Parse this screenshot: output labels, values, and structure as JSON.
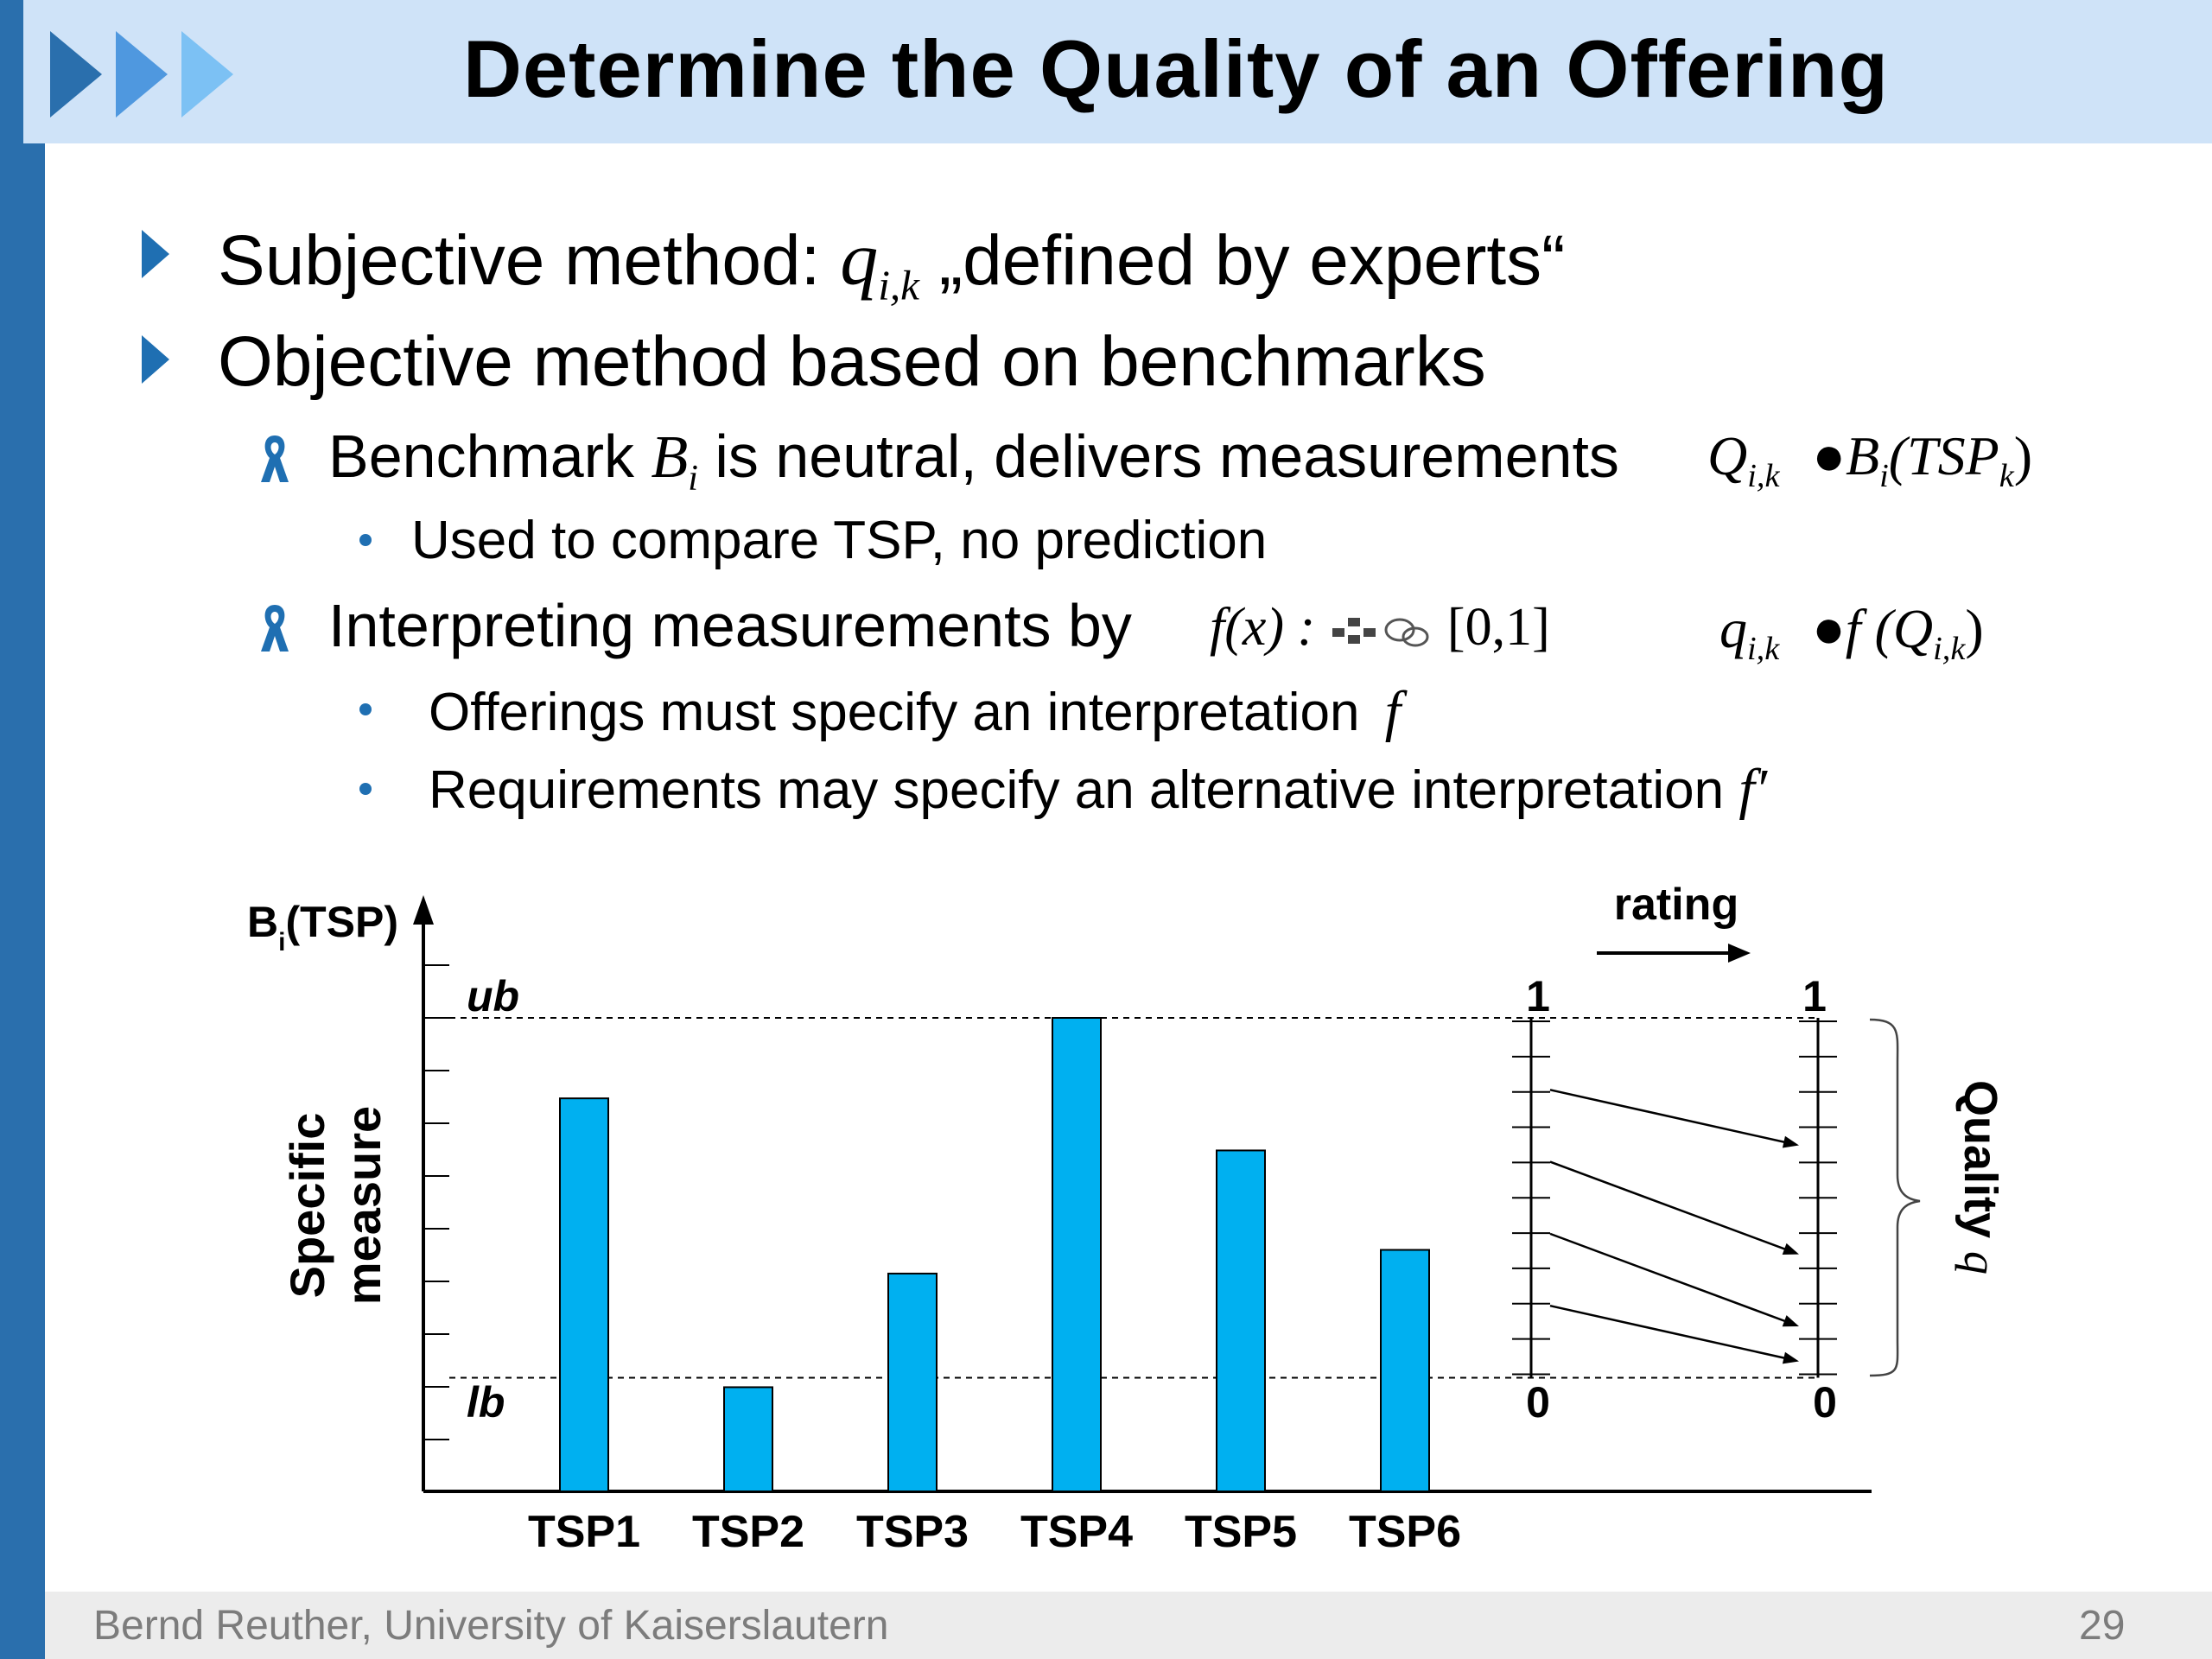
{
  "slide": {
    "title": "Determine the Quality of an Offering",
    "bullets": {
      "subjective": {
        "prefix": "Subjective method: ",
        "symbol": "q",
        "sub": "i,k",
        "suffix": " „defined by experts“"
      },
      "objective": "Objective method based on benchmarks",
      "benchmark": {
        "prefix": "Benchmark ",
        "symbol": "B",
        "sub": "i",
        "suffix": " is neutral, delivers measurements",
        "formula_lhs": "Q",
        "formula_lhs_sub": "i,k",
        "formula_rhs": "●B",
        "formula_rhs_sub": "i",
        "formula_rhs_arg": "(TSP",
        "formula_rhs_arg_sub": "k",
        "formula_rhs_close": ")"
      },
      "used": "Used to compare TSP, no prediction",
      "interpreting": {
        "text": "Interpreting measurements by",
        "formula": "f(x) : ",
        "codomain": "[0,1]",
        "rhs_lhs": "q",
        "rhs_lhs_sub": "i,k",
        "rhs_mid": "●f (Q",
        "rhs_mid_sub": "i,k",
        "rhs_close": ")"
      },
      "offerings": {
        "text": "Offerings must specify an interpretation ",
        "symbol": "f"
      },
      "requirements": {
        "text": "Requirements may specify an alternative interpretation ",
        "symbol": "f′"
      }
    },
    "footer": "Bernd Reuther, University of Kaiserslautern",
    "page_number": "29",
    "colors": {
      "header_bg": "#cfe3f8",
      "strip": "#2a6fad",
      "bullet": "#1f6fb2",
      "bar": "#00b0f0"
    }
  },
  "chart_data": {
    "type": "bar",
    "categories": [
      "TSP1",
      "TSP2",
      "TSP3",
      "TSP4",
      "TSP5",
      "TSP6"
    ],
    "values": [
      0.83,
      0.22,
      0.46,
      1.0,
      0.72,
      0.51
    ],
    "value_scale": "fraction of the axis height from the x-axis up to ub (bars not otherwise labeled)",
    "y_axis_label": "B",
    "y_axis_label_sub": "i",
    "y_axis_label_rest": "(TSP)",
    "ylabel_line1": "Specific",
    "ylabel_line2": "measure",
    "ub_label": "ub",
    "lb_label": "lb",
    "lb_value": 0.24,
    "rating_label": "rating",
    "rating_scale": {
      "left_top": "1",
      "left_bottom": "0",
      "right_top": "1",
      "right_bottom": "0"
    },
    "rating_mappings": [
      [
        0.8,
        0.65
      ],
      [
        0.6,
        0.35
      ],
      [
        0.4,
        0.15
      ],
      [
        0.2,
        0.05
      ]
    ],
    "quality_label": "Quality ",
    "quality_symbol": "q"
  }
}
